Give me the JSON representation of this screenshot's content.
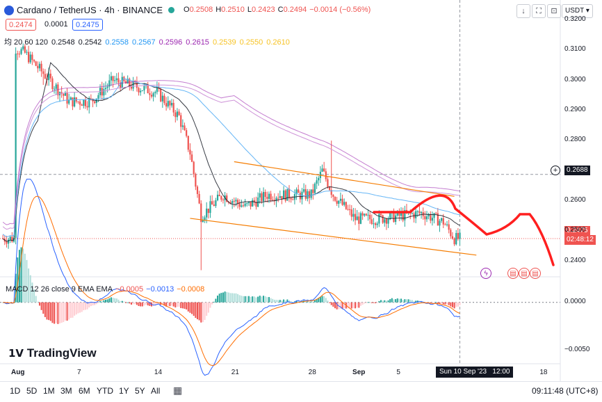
{
  "header": {
    "title": "Cardano / TetherUS · 4h · BINANCE",
    "ohlc": [
      {
        "k": "O",
        "v": "0.2508"
      },
      {
        "k": "H",
        "v": "0.2510"
      },
      {
        "k": "L",
        "v": "0.2423"
      },
      {
        "k": "C",
        "v": "0.2494"
      },
      {
        "k": "",
        "v": "−0.0014 (−0.56%)"
      }
    ],
    "bid": "0.2474",
    "spread": "0.0001",
    "ask": "0.2475",
    "currency": "USDT"
  },
  "ma_legend": {
    "label": "均 20 60 120",
    "values": [
      {
        "v": "0.2548",
        "color": "#131722"
      },
      {
        "v": "0.2542",
        "color": "#131722"
      },
      {
        "v": "0.2558",
        "color": "#2196f3"
      },
      {
        "v": "0.2567",
        "color": "#2196f3"
      },
      {
        "v": "0.2596",
        "color": "#9c27b0"
      },
      {
        "v": "0.2615",
        "color": "#9c27b0"
      },
      {
        "v": "0.2539",
        "color": "#f7c325"
      },
      {
        "v": "0.2550",
        "color": "#f7c325"
      },
      {
        "v": "0.2610",
        "color": "#f7c325"
      }
    ]
  },
  "macd_legend": {
    "label": "MACD 12 26 close 9 EMA EMA",
    "values": [
      {
        "v": "−0.0005",
        "color": "#ef5350"
      },
      {
        "v": "−0.0013",
        "color": "#2962ff"
      },
      {
        "v": "−0.0008",
        "color": "#ff6d00"
      }
    ]
  },
  "price_axis": {
    "ticks": [
      "0.3200",
      "0.3100",
      "0.3000",
      "0.2900",
      "0.2800",
      "0.2688",
      "0.2600",
      "0.2500",
      "0.2475",
      "02:48:12",
      "0.2400"
    ],
    "crosshair_price": "0.2688",
    "last_price": "0.2475",
    "countdown": "02:48:12"
  },
  "macd_axis": {
    "ticks": [
      "0.0000",
      "−0.0050"
    ]
  },
  "time_axis": {
    "ticks": [
      "Aug",
      "7",
      "14",
      "21",
      "28",
      "Sep",
      "5",
      "18"
    ],
    "crosshair_time": "Sun 10 Sep '23",
    "crosshair_hour": "12:00"
  },
  "branding": "TradingView",
  "toolbar": {
    "timeframes": [
      "1D",
      "5D",
      "1M",
      "3M",
      "6M",
      "YTD",
      "1Y",
      "5Y",
      "All"
    ],
    "clock": "09:11:48 (UTC+8)"
  },
  "colors": {
    "up": "#26a69a",
    "down": "#ef5350",
    "drawing": "#ff1f1f",
    "channel": "#f57c00",
    "ma20": "#131722",
    "ma60": "#2196f3",
    "ma120": "#9c27b0"
  },
  "chart_data": {
    "type": "candlestick",
    "symbol": "Cardano / TetherUS",
    "interval": "4h",
    "exchange": "BINANCE",
    "price_range": [
      0.2355,
      0.3225
    ],
    "close_path": [
      [
        "Jul 31",
        0.311
      ],
      [
        "Aug 2",
        0.309
      ],
      [
        "Aug 4",
        0.301
      ],
      [
        "Aug 6",
        0.293
      ],
      [
        "Aug 8",
        0.293
      ],
      [
        "Aug 10",
        0.3
      ],
      [
        "Aug 12",
        0.298
      ],
      [
        "Aug 14",
        0.296
      ],
      [
        "Aug 16",
        0.288
      ],
      [
        "Aug 17",
        0.276
      ],
      [
        "Aug 18",
        0.255
      ],
      [
        "Aug 20",
        0.262
      ],
      [
        "Aug 22",
        0.258
      ],
      [
        "Aug 24",
        0.262
      ],
      [
        "Aug 26",
        0.262
      ],
      [
        "Aug 28",
        0.262
      ],
      [
        "Aug 29",
        0.27
      ],
      [
        "Aug 30",
        0.262
      ],
      [
        "Sep 1",
        0.254
      ],
      [
        "Sep 3",
        0.254
      ],
      [
        "Sep 5",
        0.255
      ],
      [
        "Sep 7",
        0.256
      ],
      [
        "Sep 9",
        0.253
      ],
      [
        "Sep 10",
        0.2475
      ]
    ],
    "macd_range": [
      -0.0065,
      0.0025
    ],
    "annotations": {
      "channel_upper": [
        [
          "Aug 21",
          0.273
        ],
        [
          "Sep 10",
          0.2615
        ]
      ],
      "channel_lower": [
        [
          "Aug 17",
          0.2542
        ],
        [
          "Sep 12",
          0.242
        ]
      ]
    }
  }
}
